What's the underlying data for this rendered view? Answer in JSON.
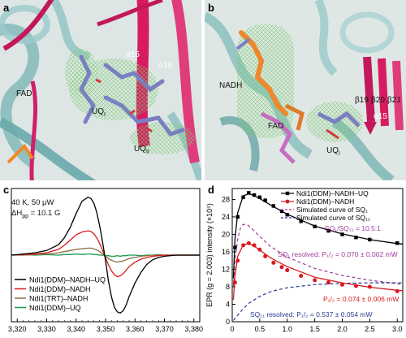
{
  "panels": {
    "a": {
      "label": "a",
      "annotations": {
        "helix1": "α15",
        "helix2": "α16",
        "fad": "FAD",
        "uqi": "UQ",
        "uqi_sub": "I",
        "uqii": "UQ",
        "uqii_sub": "II"
      }
    },
    "b": {
      "label": "b",
      "annotations": {
        "nadh": "NADH",
        "fad": "FAD",
        "uqi": "UQ",
        "uqi_sub": "I",
        "b19": "β19",
        "b20": "β20",
        "b21": "β21",
        "a15": "α15"
      }
    },
    "c": {
      "label": "c",
      "conditions": {
        "line1": "40 K, 50 μW",
        "line2_prefix": "ΔH",
        "line2_sub": "pp",
        "line2_suffix": " = 10.1 G"
      },
      "colors": {
        "black": "#000000",
        "red": "#d7191c",
        "brown": "#8c6d3f",
        "green": "#1a9850"
      }
    },
    "d": {
      "label": "d",
      "ratio_label": "SQ",
      "ratio_text": "SQ₁/SQ₁₁ = 10.5:1",
      "sq1_resolved": "SQ₁ resolved: P₁/₂ = 0.070 ± 0.002 mW",
      "p12_red": "P₁/₂ = 0.074 ± 0.006 mW",
      "sq2_resolved": "SQ₁₁ resolved: P₁/₂ = 0.537 ± 0.054 mW",
      "colors": {
        "black": "#000000",
        "red": "#d7191c",
        "purple": "#a03c9a",
        "navy": "#2a3a8c"
      }
    }
  },
  "chart_data": [
    {
      "type": "line",
      "panel": "c",
      "xlabel": "",
      "ylabel": "",
      "x_ticks": [
        "3,320",
        "3,330",
        "3,340",
        "3,350",
        "3,360",
        "3,370",
        "3,380"
      ],
      "xlim": [
        3318,
        3382
      ],
      "ylim": [
        -1.15,
        1.15
      ],
      "x": [
        3318,
        3322,
        3326,
        3330,
        3334,
        3336,
        3338,
        3340,
        3342,
        3344,
        3345,
        3346,
        3347,
        3348,
        3349,
        3350,
        3351,
        3352,
        3353,
        3354,
        3355,
        3356,
        3357,
        3358,
        3360,
        3362,
        3364,
        3366,
        3368,
        3370,
        3374,
        3378,
        3382
      ],
      "series": [
        {
          "name": "Ndi1(DDM)–NADH–UQ",
          "values": [
            0.0,
            0.02,
            0.04,
            0.08,
            0.18,
            0.3,
            0.48,
            0.72,
            0.93,
            1.0,
            0.98,
            0.9,
            0.74,
            0.5,
            0.22,
            -0.1,
            -0.45,
            -0.72,
            -0.9,
            -0.98,
            -1.0,
            -0.96,
            -0.86,
            -0.72,
            -0.48,
            -0.3,
            -0.16,
            -0.08,
            -0.04,
            -0.02,
            0.0,
            0.0,
            0.0
          ]
        },
        {
          "name": "Ndi1(DDM)–NADH",
          "values": [
            0.0,
            0.01,
            0.02,
            0.04,
            0.1,
            0.17,
            0.26,
            0.35,
            0.4,
            0.42,
            0.41,
            0.37,
            0.3,
            0.2,
            0.08,
            -0.05,
            -0.17,
            -0.27,
            -0.34,
            -0.37,
            -0.36,
            -0.32,
            -0.26,
            -0.2,
            -0.12,
            -0.07,
            -0.04,
            -0.02,
            -0.01,
            0.0,
            0.0,
            0.0,
            0.0
          ]
        },
        {
          "name": "Ndi1(TRT)–NADH",
          "values": [
            0.0,
            0.0,
            0.01,
            0.02,
            0.04,
            0.06,
            0.08,
            0.1,
            0.11,
            0.12,
            0.12,
            0.11,
            0.09,
            0.06,
            0.02,
            -0.02,
            -0.06,
            -0.09,
            -0.11,
            -0.12,
            -0.11,
            -0.1,
            -0.08,
            -0.06,
            -0.04,
            -0.02,
            -0.01,
            0.0,
            0.0,
            0.0,
            0.0,
            0.0,
            0.0
          ]
        },
        {
          "name": "Ndi1(DDM)–UQ",
          "values": [
            0.0,
            0.01,
            0.0,
            0.01,
            0.0,
            0.01,
            0.01,
            0.02,
            0.01,
            0.02,
            0.02,
            0.01,
            0.01,
            0.0,
            0.0,
            -0.01,
            -0.01,
            -0.02,
            -0.02,
            -0.01,
            -0.02,
            -0.01,
            -0.01,
            0.0,
            0.0,
            -0.01,
            0.0,
            0.0,
            0.01,
            0.0,
            0.0,
            0.0,
            0.0
          ]
        }
      ]
    },
    {
      "type": "scatter",
      "panel": "d",
      "xlabel": "",
      "ylabel": "EPR (g = 2.003) intensity (×10⁵)",
      "x_ticks": [
        "0",
        "0.5",
        "1.0",
        "1.5",
        "2.0",
        "2.5",
        "3.0"
      ],
      "y_ticks": [
        "0",
        "4",
        "8",
        "12",
        "16",
        "20",
        "24",
        "28"
      ],
      "xlim": [
        0,
        3.1
      ],
      "ylim": [
        0,
        30.5
      ],
      "series": [
        {
          "name": "Ndi1(DDM)–NADH–UQ",
          "points": [
            [
              0.05,
              17.0
            ],
            [
              0.1,
              24.0
            ],
            [
              0.2,
              28.5
            ],
            [
              0.3,
              29.5
            ],
            [
              0.4,
              29.0
            ],
            [
              0.5,
              28.5
            ],
            [
              0.6,
              27.8
            ],
            [
              0.75,
              26.5
            ],
            [
              0.9,
              25.3
            ],
            [
              1.0,
              24.5
            ],
            [
              1.25,
              23.0
            ],
            [
              1.5,
              21.8
            ],
            [
              1.75,
              20.8
            ],
            [
              2.0,
              20.0
            ],
            [
              2.25,
              19.3
            ],
            [
              2.5,
              18.8
            ],
            [
              3.0,
              18.0
            ]
          ]
        },
        {
          "name": "Ndi1(DDM)–NADH",
          "points": [
            [
              0.05,
              9.0
            ],
            [
              0.1,
              14.0
            ],
            [
              0.2,
              17.5
            ],
            [
              0.3,
              18.0
            ],
            [
              0.4,
              17.5
            ],
            [
              0.5,
              16.5
            ],
            [
              0.6,
              15.0
            ],
            [
              0.75,
              13.5
            ],
            [
              0.9,
              12.5
            ],
            [
              1.0,
              11.8
            ],
            [
              1.25,
              10.5
            ],
            [
              1.5,
              9.5
            ],
            [
              1.75,
              9.0
            ],
            [
              2.0,
              8.5
            ],
            [
              2.25,
              8.2
            ],
            [
              2.5,
              8.0
            ],
            [
              3.0,
              7.0
            ]
          ]
        },
        {
          "name": "Simulated curve of SQ₁",
          "curve": [
            [
              0.02,
              8.0
            ],
            [
              0.05,
              14.0
            ],
            [
              0.1,
              19.0
            ],
            [
              0.15,
              21.5
            ],
            [
              0.2,
              22.3
            ],
            [
              0.3,
              22.0
            ],
            [
              0.4,
              20.8
            ],
            [
              0.5,
              19.5
            ],
            [
              0.7,
              17.2
            ],
            [
              1.0,
              14.8
            ],
            [
              1.5,
              12.2
            ],
            [
              2.0,
              10.6
            ],
            [
              2.5,
              9.5
            ],
            [
              3.0,
              8.7
            ],
            [
              3.1,
              8.5
            ]
          ]
        },
        {
          "name": "Simulated curve of SQ₁₁",
          "curve": [
            [
              0.02,
              0.3
            ],
            [
              0.1,
              1.5
            ],
            [
              0.2,
              3.0
            ],
            [
              0.3,
              4.2
            ],
            [
              0.5,
              5.8
            ],
            [
              0.7,
              6.9
            ],
            [
              1.0,
              7.8
            ],
            [
              1.5,
              8.5
            ],
            [
              2.0,
              8.8
            ],
            [
              2.5,
              8.9
            ],
            [
              3.0,
              8.9
            ],
            [
              3.1,
              8.9
            ]
          ]
        },
        {
          "name": "fit Ndi1(DDM)–NADH–UQ",
          "curve": [
            [
              0.02,
              10.0
            ],
            [
              0.05,
              19.0
            ],
            [
              0.1,
              25.0
            ],
            [
              0.2,
              28.8
            ],
            [
              0.3,
              29.3
            ],
            [
              0.4,
              28.9
            ],
            [
              0.5,
              28.2
            ],
            [
              0.7,
              26.7
            ],
            [
              1.0,
              24.6
            ],
            [
              1.5,
              21.9
            ],
            [
              2.0,
              20.1
            ],
            [
              2.5,
              18.8
            ],
            [
              3.0,
              17.9
            ],
            [
              3.1,
              17.8
            ]
          ]
        },
        {
          "name": "fit Ndi1(DDM)–NADH",
          "curve": [
            [
              0.02,
              5.0
            ],
            [
              0.05,
              10.5
            ],
            [
              0.1,
              15.0
            ],
            [
              0.2,
              17.6
            ],
            [
              0.3,
              17.9
            ],
            [
              0.4,
              17.3
            ],
            [
              0.5,
              16.4
            ],
            [
              0.7,
              14.6
            ],
            [
              1.0,
              12.6
            ],
            [
              1.5,
              10.2
            ],
            [
              2.0,
              8.9
            ],
            [
              2.5,
              7.9
            ],
            [
              3.0,
              7.2
            ],
            [
              3.1,
              7.1
            ]
          ]
        }
      ]
    }
  ]
}
